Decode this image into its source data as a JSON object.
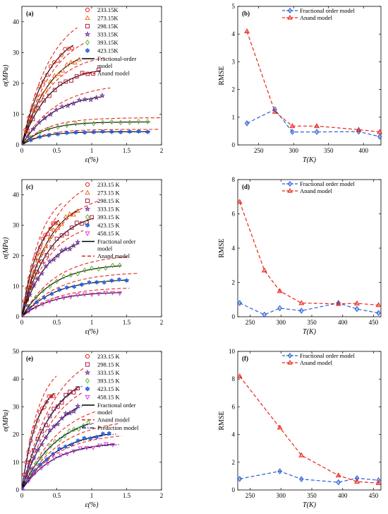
{
  "chart_data": [
    {
      "id": "a",
      "type": "scatter",
      "panel_label": "(a)",
      "xlabel": "ε(%)",
      "ylabel": "σ(MPa)",
      "xlim": [
        0,
        2
      ],
      "ylim": [
        0,
        45
      ],
      "xticks": [
        0,
        0.5,
        1,
        1.5,
        2
      ],
      "yticks": [
        0,
        10,
        20,
        30,
        40
      ],
      "legend_position": "top-right",
      "series": [
        {
          "name": "233.15K",
          "marker": "circle",
          "color": "#e8261b",
          "sigma_max": 38,
          "k": 2.6,
          "eps_end": 0.72
        },
        {
          "name": "273.15K",
          "marker": "triangle",
          "color": "#f26b1d",
          "sigma_max": 32.5,
          "k": 2.4,
          "eps_end": 0.82
        },
        {
          "name": "298.15K",
          "marker": "square",
          "color": "#b0203e",
          "sigma_max": 25.5,
          "k": 2.6,
          "eps_end": 1.1
        },
        {
          "name": "333.15K",
          "marker": "star",
          "color": "#7a3d9b",
          "sigma_max": 17,
          "k": 2.2,
          "eps_end": 1.15
        },
        {
          "name": "393.15K",
          "marker": "diamond",
          "color": "#66b032",
          "sigma_max": 7.5,
          "k": 3,
          "eps_end": 1.8
        },
        {
          "name": "423.15K",
          "marker": "hexstar",
          "color": "#2b5fd6",
          "sigma_max": 4.3,
          "k": 3.5,
          "eps_end": 1.8
        }
      ],
      "model_lines": [
        {
          "name": "Fractional-order model",
          "style": "solid",
          "color": "#000000"
        },
        {
          "name": "Anand model",
          "style": "dashed",
          "color": "#e8261b"
        }
      ]
    },
    {
      "id": "b",
      "type": "line",
      "panel_label": "(b)",
      "xlabel": "T(K)",
      "ylabel": "RMSE",
      "xlim": [
        220,
        425
      ],
      "ylim": [
        0,
        5
      ],
      "xticks": [
        250,
        300,
        350,
        400
      ],
      "yticks": [
        0,
        1,
        2,
        3,
        4,
        5
      ],
      "legend_position": "top-right",
      "series": [
        {
          "name": "Fractional order model",
          "marker": "diamond",
          "color": "#2b5fd6",
          "x": [
            233.15,
            273.15,
            298.15,
            333.15,
            393.15,
            423.15
          ],
          "y": [
            0.78,
            1.28,
            0.47,
            0.47,
            0.48,
            0.3
          ]
        },
        {
          "name": "Anand model",
          "marker": "triangle",
          "color": "#e8261b",
          "x": [
            233.15,
            273.15,
            298.15,
            333.15,
            393.15,
            423.15
          ],
          "y": [
            4.1,
            1.2,
            0.68,
            0.68,
            0.55,
            0.47
          ]
        }
      ]
    },
    {
      "id": "c",
      "type": "scatter",
      "panel_label": "(c)",
      "xlabel": "ε(%)",
      "ylabel": "σ(MPa)",
      "xlim": [
        0,
        2
      ],
      "ylim": [
        0,
        45
      ],
      "xticks": [
        0,
        0.5,
        1,
        1.5,
        2
      ],
      "yticks": [
        0,
        10,
        20,
        30,
        40
      ],
      "legend_position": "top-right",
      "series": [
        {
          "name": "233.15 K",
          "marker": "circle",
          "color": "#e8261b",
          "sigma_max": 36,
          "k": 4,
          "eps_end": 0.52
        },
        {
          "name": "273.15 K",
          "marker": "triangle",
          "color": "#f26b1d",
          "sigma_max": 40,
          "k": 2.6,
          "eps_end": 0.8
        },
        {
          "name": "298.15 K",
          "marker": "square",
          "color": "#b0203e",
          "sigma_max": 35,
          "k": 2.5,
          "eps_end": 1.0
        },
        {
          "name": "333.15 K",
          "marker": "star",
          "color": "#7a3d9b",
          "sigma_max": 27,
          "k": 2.7,
          "eps_end": 0.8
        },
        {
          "name": "393.15 K",
          "marker": "diamond",
          "color": "#66b032",
          "sigma_max": 17.5,
          "k": 2.2,
          "eps_end": 1.4
        },
        {
          "name": "423.15 K",
          "marker": "hexstar",
          "color": "#2b5fd6",
          "sigma_max": 12.5,
          "k": 2.2,
          "eps_end": 1.5
        },
        {
          "name": "458.15 K",
          "marker": "triangle-down",
          "color": "#e43cd8",
          "sigma_max": 8.2,
          "k": 2.4,
          "eps_end": 1.4
        }
      ],
      "model_lines": [
        {
          "name": "Fractional order model",
          "style": "solid",
          "color": "#000000"
        },
        {
          "name": "Anand model",
          "style": "dashed",
          "color": "#e8261b"
        }
      ]
    },
    {
      "id": "d",
      "type": "line",
      "panel_label": "(d)",
      "xlabel": "T(K)",
      "ylabel": "RMSE",
      "xlim": [
        230,
        462
      ],
      "ylim": [
        0,
        8
      ],
      "xticks": [
        250,
        300,
        350,
        400,
        450
      ],
      "yticks": [
        0,
        2,
        4,
        6,
        8
      ],
      "legend_position": "top-right",
      "series": [
        {
          "name": "Fractional order model",
          "marker": "diamond",
          "color": "#2b5fd6",
          "x": [
            233.15,
            273.15,
            298.15,
            333.15,
            393.15,
            423.15,
            458.15
          ],
          "y": [
            0.8,
            0.12,
            0.5,
            0.35,
            0.8,
            0.45,
            0.22
          ]
        },
        {
          "name": "Anand model",
          "marker": "triangle",
          "color": "#e8261b",
          "x": [
            233.15,
            273.15,
            298.15,
            333.15,
            393.15,
            423.15,
            458.15
          ],
          "y": [
            6.7,
            2.7,
            1.5,
            0.8,
            0.75,
            0.78,
            0.68
          ]
        }
      ]
    },
    {
      "id": "e",
      "type": "scatter",
      "panel_label": "(e)",
      "xlabel": "ε(%)",
      "ylabel": "σ(MPa)",
      "xlim": [
        0,
        2
      ],
      "ylim": [
        0,
        50
      ],
      "xticks": [
        0,
        0.5,
        1,
        1.5,
        2
      ],
      "yticks": [
        0,
        10,
        20,
        30,
        40,
        50
      ],
      "legend_position": "top-right",
      "series": [
        {
          "name": "233.15 K",
          "marker": "circle",
          "color": "#e8261b",
          "sigma_max": 40,
          "k": 4.5,
          "eps_end": 0.45
        },
        {
          "name": "298.15 K",
          "marker": "square",
          "color": "#b0203e",
          "sigma_max": 44,
          "k": 2.3,
          "eps_end": 0.8
        },
        {
          "name": "333.15 K",
          "marker": "star",
          "color": "#7a3d9b",
          "sigma_max": 36,
          "k": 2.2,
          "eps_end": 0.8
        },
        {
          "name": "393.15 K",
          "marker": "diamond",
          "color": "#66b032",
          "sigma_max": 28,
          "k": 2.0,
          "eps_end": 0.95
        },
        {
          "name": "423.15 K",
          "marker": "hexstar",
          "color": "#2b5fd6",
          "sigma_max": 22,
          "k": 2.0,
          "eps_end": 1.25
        },
        {
          "name": "458.15 K",
          "marker": "triangle-down",
          "color": "#e43cd8",
          "sigma_max": 17.5,
          "k": 2.2,
          "eps_end": 1.3
        }
      ],
      "model_lines": [
        {
          "name": "Fractional order model",
          "style": "solid",
          "color": "#000000"
        },
        {
          "name": "Anand  model",
          "style": "dashed",
          "color": "#e8261b"
        },
        {
          "name": "Prediction model",
          "style": "dashdot",
          "color": "#1f2fa8"
        }
      ]
    },
    {
      "id": "f",
      "type": "line",
      "panel_label": "(f)",
      "xlabel": "T(K)",
      "ylabel": "RMSE",
      "xlim": [
        230,
        462
      ],
      "ylim": [
        0,
        10
      ],
      "xticks": [
        250,
        300,
        350,
        400,
        450
      ],
      "yticks": [
        0,
        2,
        4,
        6,
        8,
        10
      ],
      "legend_position": "top-right",
      "series": [
        {
          "name": "Fractional order model",
          "marker": "diamond",
          "color": "#2b5fd6",
          "x": [
            233.15,
            298.15,
            333.15,
            393.15,
            423.15,
            458.15
          ],
          "y": [
            0.8,
            1.35,
            0.78,
            0.55,
            0.85,
            0.7
          ]
        },
        {
          "name": "Anand model",
          "marker": "triangle",
          "color": "#e8261b",
          "x": [
            233.15,
            298.15,
            333.15,
            393.15,
            423.15,
            458.15
          ],
          "y": [
            8.2,
            4.5,
            2.5,
            1.05,
            0.6,
            0.5
          ]
        }
      ]
    }
  ]
}
